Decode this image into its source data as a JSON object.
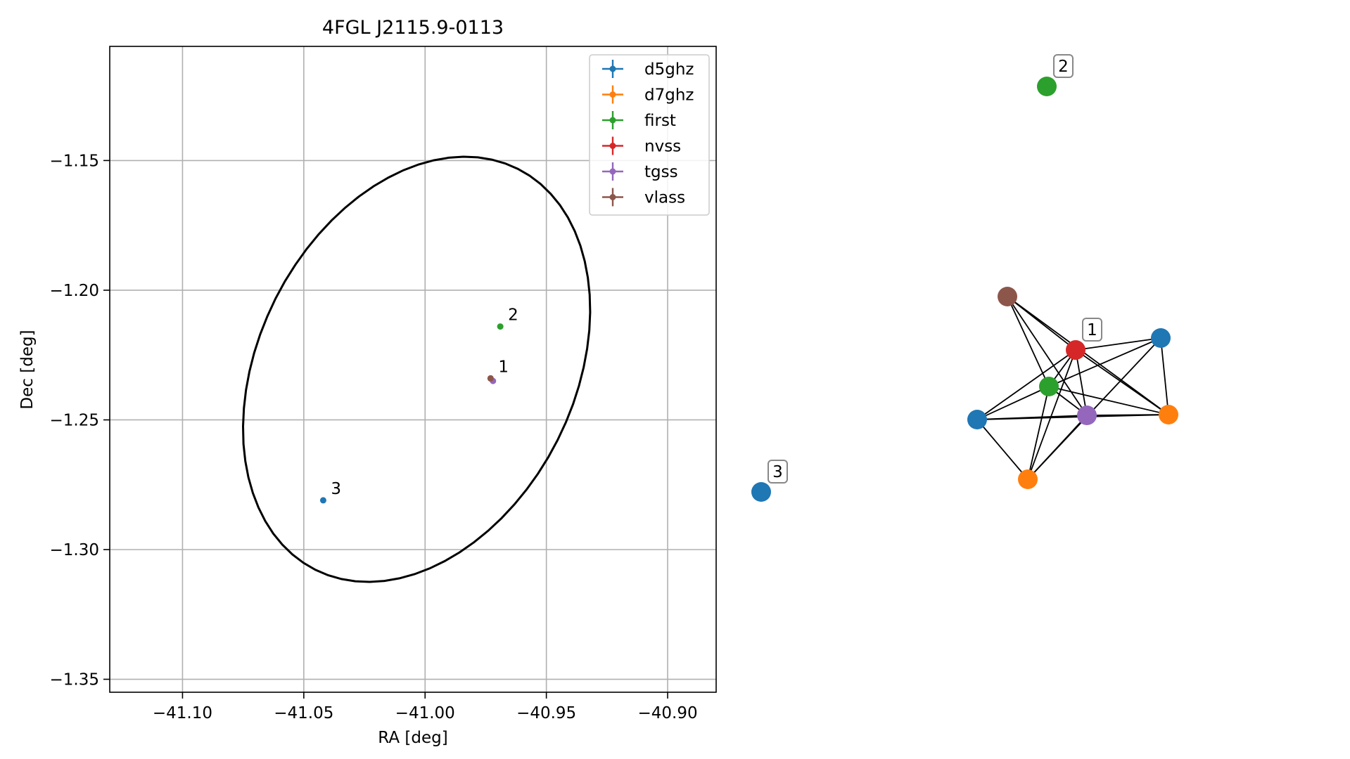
{
  "chart_data": [
    {
      "type": "scatter",
      "title": "4FGL J2115.9-0113",
      "xlabel": "RA [deg]",
      "ylabel": "Dec [deg]",
      "xlim": [
        -41.13,
        -40.88
      ],
      "ylim": [
        -1.355,
        -1.106
      ],
      "xticks": [
        -41.1,
        -41.05,
        -41.0,
        -40.95,
        -40.9
      ],
      "xtick_labels": [
        "−41.10",
        "−41.05",
        "−41.00",
        "−40.95",
        "−40.90"
      ],
      "yticks": [
        -1.15,
        -1.2,
        -1.25,
        -1.3,
        -1.35
      ],
      "ytick_labels": [
        "−1.15",
        "−1.20",
        "−1.25",
        "−1.30",
        "−1.35"
      ],
      "grid": true,
      "legend_position": "top-right",
      "series": [
        {
          "name": "d5ghz",
          "color": "#1f77b4",
          "points": [
            {
              "x": -41.042,
              "y": -1.281
            }
          ]
        },
        {
          "name": "d7ghz",
          "color": "#ff7f0e",
          "points": []
        },
        {
          "name": "first",
          "color": "#2ca02c",
          "points": [
            {
              "x": -40.969,
              "y": -1.214
            }
          ]
        },
        {
          "name": "nvss",
          "color": "#d62728",
          "points": [
            {
              "x": -40.973,
              "y": -1.234
            }
          ]
        },
        {
          "name": "tgss",
          "color": "#9467bd",
          "points": [
            {
              "x": -40.972,
              "y": -1.235
            }
          ]
        },
        {
          "name": "vlass",
          "color": "#8c564b",
          "points": [
            {
              "x": -40.973,
              "y": -1.234
            }
          ]
        }
      ],
      "annotations": [
        {
          "text": "1",
          "x": -40.973,
          "y": -1.234
        },
        {
          "text": "2",
          "x": -40.969,
          "y": -1.214
        },
        {
          "text": "3",
          "x": -41.042,
          "y": -1.281
        }
      ],
      "ellipse": {
        "center": [
          -41.0035,
          -1.2305
        ],
        "semi_major": 0.088,
        "semi_minor": 0.064,
        "angle_deg": 58,
        "color": "#000000"
      }
    },
    {
      "type": "network",
      "nodes": [
        {
          "id": "n2",
          "color": "#2ca02c",
          "label": "2"
        },
        {
          "id": "n3",
          "color": "#1f77b4",
          "label": "3"
        },
        {
          "id": "brown",
          "color": "#8c564b",
          "label": ""
        },
        {
          "id": "red",
          "color": "#d62728",
          "label": "1"
        },
        {
          "id": "blue_r",
          "color": "#1f77b4",
          "label": ""
        },
        {
          "id": "green",
          "color": "#2ca02c",
          "label": ""
        },
        {
          "id": "blue_l",
          "color": "#1f77b4",
          "label": ""
        },
        {
          "id": "purple",
          "color": "#9467bd",
          "label": ""
        },
        {
          "id": "orange_r",
          "color": "#ff7f0e",
          "label": ""
        },
        {
          "id": "orange_b",
          "color": "#ff7f0e",
          "label": ""
        }
      ],
      "edges": [
        [
          "brown",
          "red"
        ],
        [
          "brown",
          "green"
        ],
        [
          "brown",
          "purple"
        ],
        [
          "brown",
          "orange_r"
        ],
        [
          "red",
          "blue_r"
        ],
        [
          "red",
          "green"
        ],
        [
          "red",
          "blue_l"
        ],
        [
          "red",
          "purple"
        ],
        [
          "red",
          "orange_r"
        ],
        [
          "red",
          "orange_b"
        ],
        [
          "blue_r",
          "green"
        ],
        [
          "blue_r",
          "orange_r"
        ],
        [
          "blue_r",
          "orange_b"
        ],
        [
          "green",
          "blue_l"
        ],
        [
          "green",
          "purple"
        ],
        [
          "green",
          "orange_r"
        ],
        [
          "green",
          "orange_b"
        ],
        [
          "blue_l",
          "purple"
        ],
        [
          "blue_l",
          "orange_r"
        ],
        [
          "blue_l",
          "orange_b"
        ],
        [
          "purple",
          "orange_r"
        ],
        [
          "purple",
          "orange_b"
        ]
      ]
    }
  ]
}
